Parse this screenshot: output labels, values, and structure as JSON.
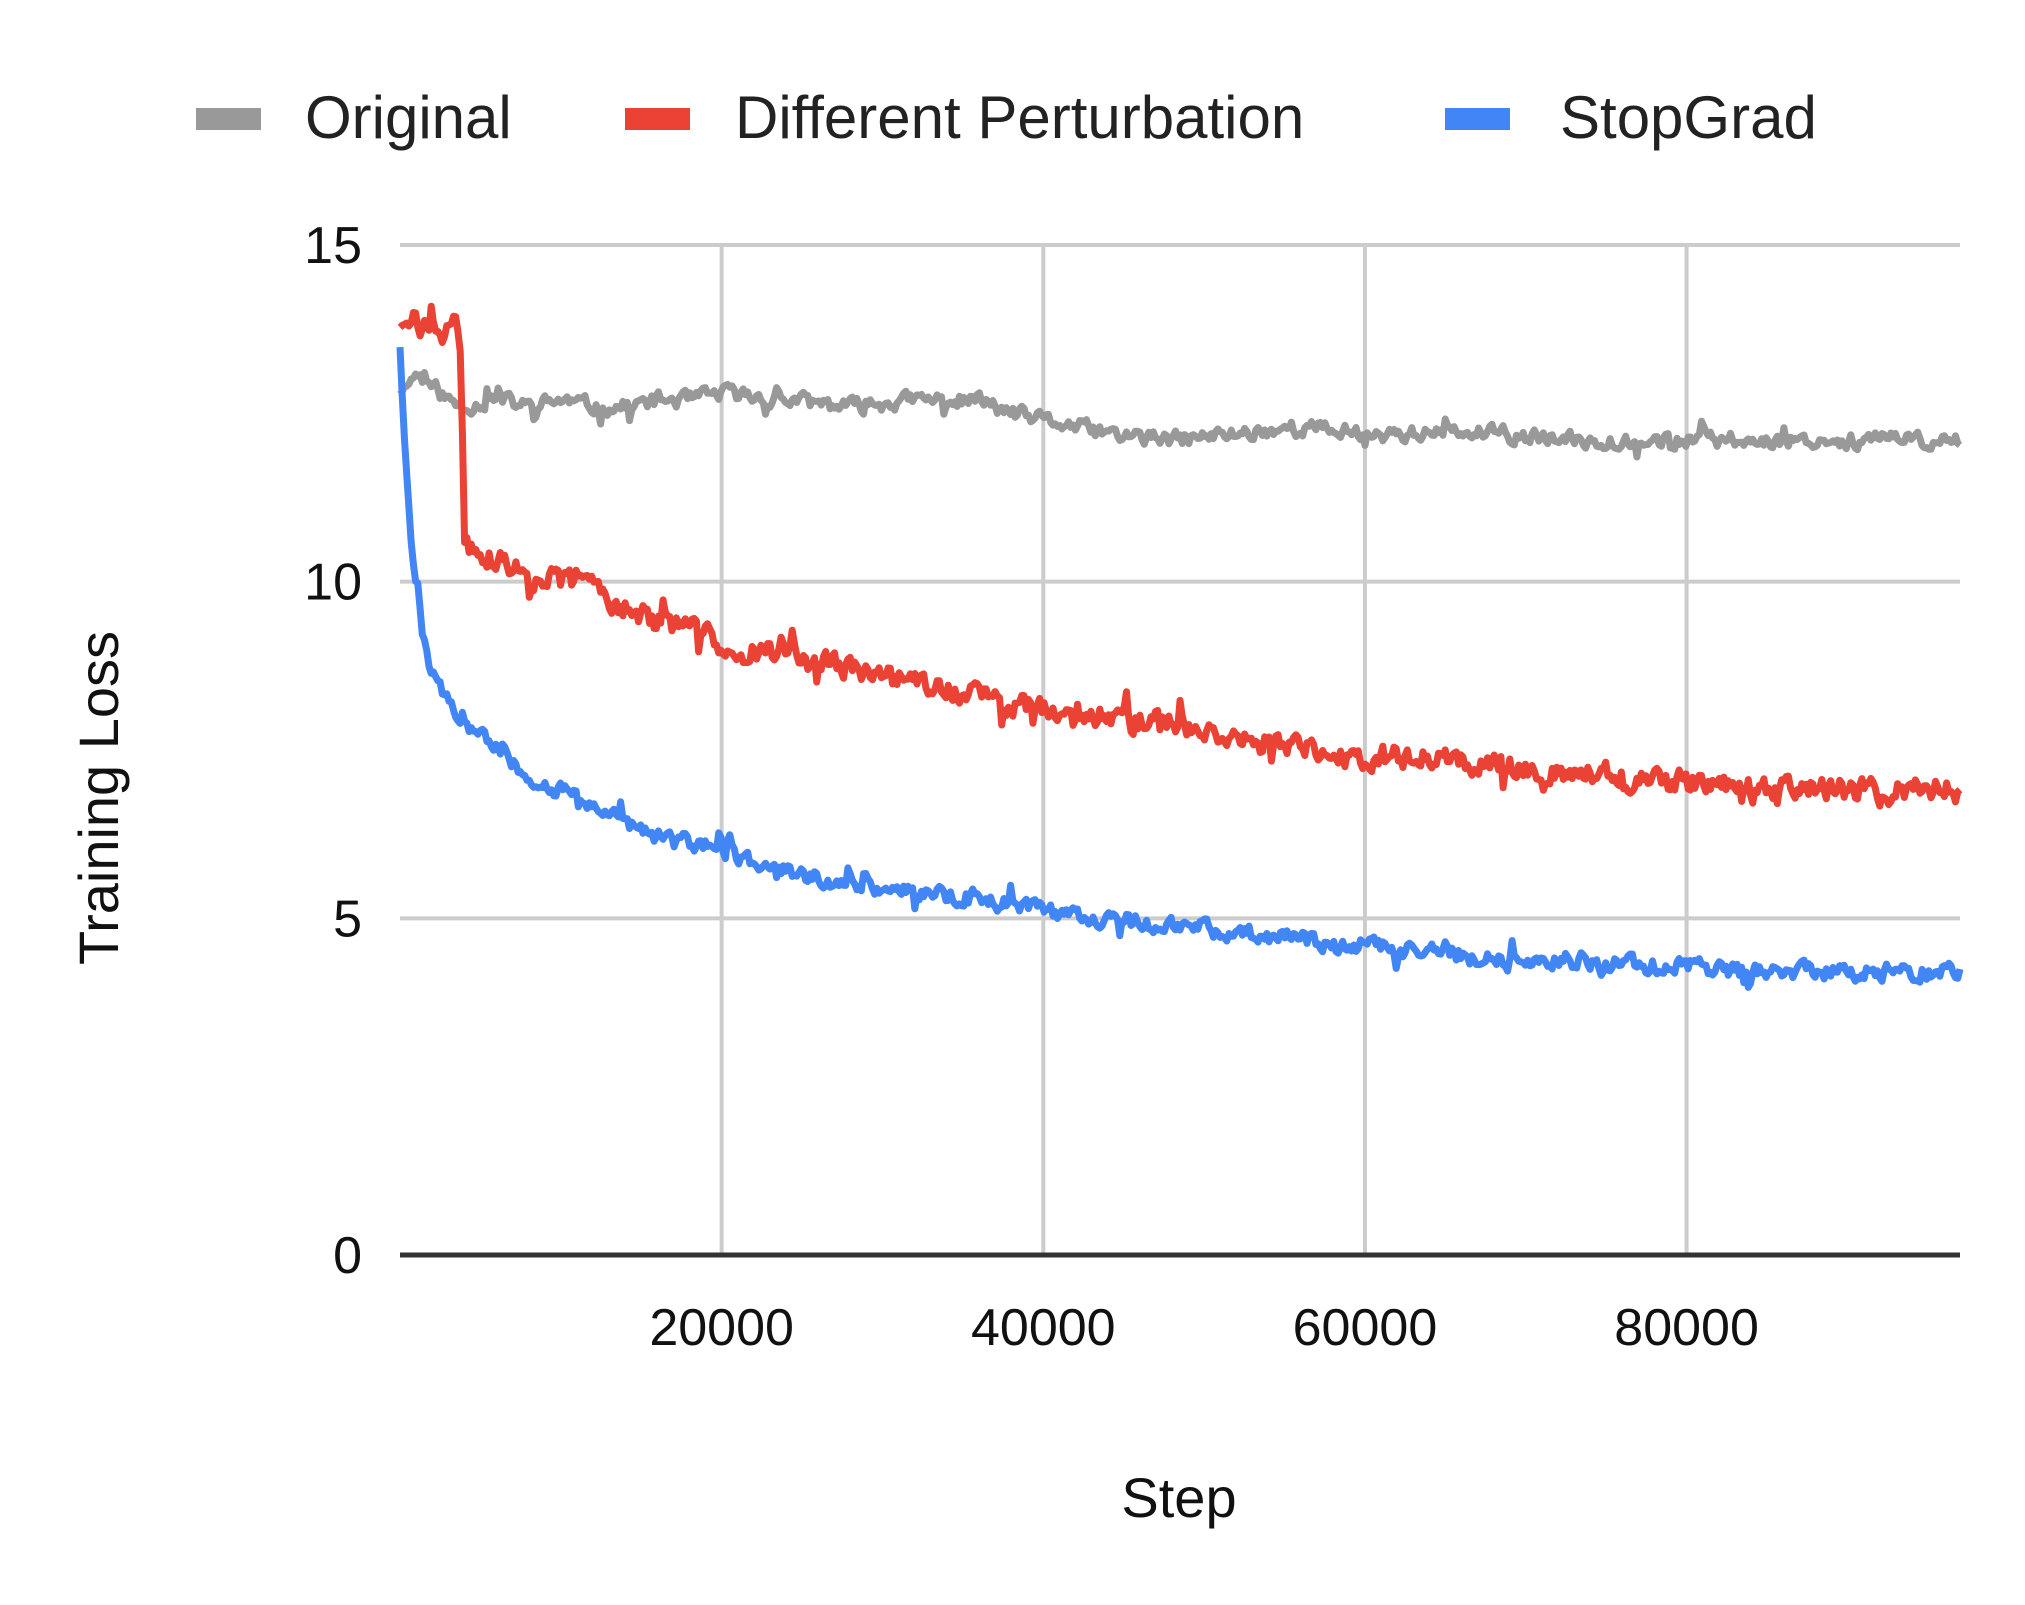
{
  "chart_data": {
    "type": "line",
    "xlabel": "Step",
    "ylabel": "Training Loss",
    "xlim": [
      0,
      97000
    ],
    "ylim": [
      0,
      15
    ],
    "x_ticks": [
      20000,
      40000,
      60000,
      80000
    ],
    "x_tick_labels": [
      "20000",
      "40000",
      "60000",
      "80000"
    ],
    "y_ticks": [
      0,
      5,
      10,
      15
    ],
    "y_tick_labels": [
      "0",
      "5",
      "10",
      "15"
    ],
    "grid": true,
    "legend_position": "top",
    "series": [
      {
        "name": "Original",
        "color": "#999999",
        "x": [
          0,
          1000,
          2000,
          3000,
          4000,
          6000,
          8000,
          10000,
          12000,
          14000,
          16000,
          18000,
          20000,
          24000,
          28000,
          32000,
          36000,
          38000,
          40000,
          44000,
          48000,
          52000,
          56000,
          60000,
          64000,
          68000,
          72000,
          76000,
          80000,
          84000,
          88000,
          92000,
          97000
        ],
        "y": [
          12.8,
          13.1,
          12.9,
          12.7,
          12.6,
          12.7,
          12.6,
          12.7,
          12.6,
          12.6,
          12.7,
          12.7,
          12.8,
          12.7,
          12.6,
          12.7,
          12.7,
          12.5,
          12.4,
          12.2,
          12.1,
          12.2,
          12.3,
          12.2,
          12.2,
          12.2,
          12.1,
          12.1,
          12.1,
          12.1,
          12.1,
          12.1,
          12.1
        ]
      },
      {
        "name": "Different Perturbation",
        "color": "#ea4335",
        "x": [
          0,
          500,
          1500,
          2500,
          3500,
          3800,
          4000,
          6000,
          8000,
          10000,
          12000,
          14000,
          16000,
          18000,
          20000,
          24000,
          28000,
          32000,
          36000,
          40000,
          44000,
          48000,
          52000,
          56000,
          60000,
          64000,
          68000,
          72000,
          76000,
          80000,
          84000,
          88000,
          92000,
          97000
        ],
        "y": [
          13.8,
          13.8,
          13.8,
          13.7,
          13.8,
          13.5,
          10.5,
          10.3,
          10.1,
          10.0,
          10.0,
          9.6,
          9.4,
          9.3,
          9.1,
          8.9,
          8.7,
          8.5,
          8.3,
          8.1,
          8.0,
          7.9,
          7.7,
          7.5,
          7.4,
          7.4,
          7.3,
          7.2,
          7.1,
          7.0,
          7.0,
          6.9,
          6.9,
          6.9
        ]
      },
      {
        "name": "StopGrad",
        "color": "#4285f4",
        "x": [
          0,
          300,
          700,
          1000,
          1500,
          2000,
          3000,
          4000,
          5000,
          6000,
          8000,
          10000,
          12000,
          14000,
          16000,
          18000,
          20000,
          22000,
          24000,
          28000,
          32000,
          36000,
          40000,
          44000,
          48000,
          52000,
          56000,
          60000,
          64000,
          68000,
          72000,
          76000,
          80000,
          84000,
          88000,
          92000,
          97000
        ],
        "y": [
          13.5,
          12.0,
          10.6,
          9.9,
          9.1,
          8.6,
          8.2,
          7.9,
          7.7,
          7.5,
          7.1,
          6.9,
          6.7,
          6.4,
          6.2,
          6.1,
          6.0,
          5.8,
          5.7,
          5.5,
          5.4,
          5.3,
          5.1,
          5.0,
          4.9,
          4.8,
          4.7,
          4.6,
          4.5,
          4.4,
          4.4,
          4.3,
          4.3,
          4.2,
          4.2,
          4.2,
          4.2
        ]
      }
    ]
  }
}
